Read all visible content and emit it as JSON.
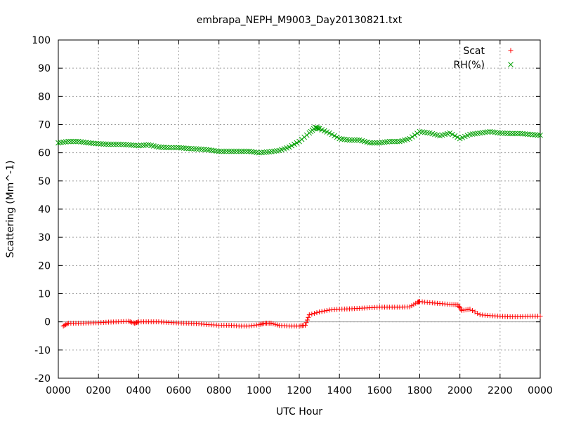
{
  "chart_data": {
    "type": "scatter",
    "title": "embrapa_NEPH_M9003_Day20130821.txt",
    "xlabel": "UTC Hour",
    "ylabel": "Scattering (Mm^-1)",
    "xlim": [
      0,
      24
    ],
    "ylim": [
      -20,
      100
    ],
    "x_ticks": [
      0,
      2,
      4,
      6,
      8,
      10,
      12,
      14,
      16,
      18,
      20,
      22,
      24
    ],
    "x_tick_labels": [
      "0000",
      "0200",
      "0400",
      "0600",
      "0800",
      "1000",
      "1200",
      "1400",
      "1600",
      "1800",
      "2000",
      "2200",
      "0000"
    ],
    "y_ticks": [
      -20,
      -10,
      0,
      10,
      20,
      30,
      40,
      50,
      60,
      70,
      80,
      90,
      100
    ],
    "y_tick_labels": [
      "-20",
      "-10",
      "0",
      "10",
      "20",
      "30",
      "40",
      "50",
      "60",
      "70",
      "80",
      "90",
      "100"
    ],
    "grid": true,
    "zero_line": true,
    "legend_position": "top-right",
    "series": [
      {
        "name": "Scat",
        "marker": "plus",
        "color": "#ff0000",
        "x": [
          0.25,
          0.5,
          1,
          1.5,
          2,
          2.5,
          3,
          3.5,
          3.8,
          4,
          4.5,
          5,
          5.5,
          6,
          6.5,
          7,
          7.5,
          8,
          8.5,
          9,
          9.5,
          10,
          10.3,
          10.6,
          11,
          11.5,
          12,
          12.3,
          12.5,
          13,
          13.5,
          14,
          14.5,
          15,
          15.5,
          16,
          16.5,
          17,
          17.5,
          17.9,
          18,
          18.5,
          19,
          19.5,
          19.9,
          20.1,
          20.5,
          21,
          21.5,
          22,
          22.5,
          23,
          23.5,
          24
        ],
        "y": [
          -1.5,
          -0.5,
          -0.5,
          -0.4,
          -0.3,
          -0.1,
          0,
          0.2,
          -0.5,
          0,
          0,
          0,
          -0.2,
          -0.4,
          -0.5,
          -0.7,
          -1,
          -1.2,
          -1.2,
          -1.5,
          -1.5,
          -1,
          -0.5,
          -0.5,
          -1.3,
          -1.5,
          -1.5,
          -1.2,
          2.5,
          3.5,
          4.2,
          4.5,
          4.6,
          4.8,
          5,
          5.2,
          5.2,
          5.2,
          5.3,
          7,
          7.2,
          6.8,
          6.5,
          6.2,
          6,
          4,
          4.5,
          2.5,
          2.2,
          2,
          1.8,
          1.8,
          2,
          2
        ]
      },
      {
        "name": "RH(%)",
        "marker": "x",
        "color": "#00a000",
        "x": [
          0,
          0.5,
          1,
          1.5,
          2,
          2.5,
          3,
          3.5,
          4,
          4.5,
          5,
          5.5,
          6,
          6.5,
          7,
          7.5,
          8,
          8.5,
          9,
          9.5,
          10,
          10.5,
          11,
          11.5,
          12,
          12.5,
          12.8,
          13,
          13.5,
          14,
          14.5,
          15,
          15.5,
          16,
          16.5,
          17,
          17.5,
          18,
          18.5,
          19,
          19.5,
          20,
          20.5,
          21,
          21.5,
          22,
          22.5,
          23,
          23.5,
          24
        ],
        "y": [
          63.5,
          64,
          64,
          63.5,
          63.2,
          63,
          63,
          62.8,
          62.5,
          62.8,
          62,
          61.8,
          61.8,
          61.5,
          61.3,
          61,
          60.5,
          60.5,
          60.5,
          60.5,
          60,
          60.3,
          60.8,
          62,
          64,
          67,
          69,
          68.5,
          67,
          65,
          64.5,
          64.5,
          63.5,
          63.5,
          64,
          64,
          65,
          67.5,
          67,
          66,
          67,
          65,
          66.5,
          67,
          67.5,
          67,
          66.8,
          66.8,
          66.5,
          66.2
        ]
      }
    ]
  }
}
